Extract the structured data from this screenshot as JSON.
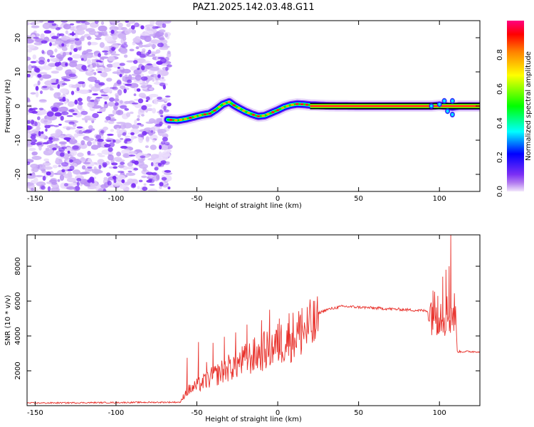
{
  "figure": {
    "title": "PAZ1.2025.142.03.48.G11"
  },
  "chart_data": [
    {
      "type": "heatmap",
      "xlabel": "Height of straight line (km)",
      "ylabel": "Frequency (Hz)",
      "xlim": [
        -155,
        125
      ],
      "ylim": [
        -25,
        25
      ],
      "xticks": [
        -150,
        -100,
        -50,
        0,
        50,
        100
      ],
      "yticks": [
        -20,
        -10,
        0,
        10,
        20
      ],
      "noise_region_x": [
        -155,
        -67
      ],
      "noise_color": "#7b2ff5",
      "signal_ridge": {
        "x": [
          -68,
          -62,
          -57,
          -52,
          -47,
          -42,
          -38,
          -34,
          -30,
          -27,
          -24,
          -20,
          -16,
          -12,
          -8,
          -4,
          0,
          4,
          8,
          12,
          16,
          20,
          30,
          50,
          80,
          95,
          100,
          104,
          108,
          112,
          125
        ],
        "freq": [
          -4,
          -4.2,
          -3.8,
          -3.2,
          -2.6,
          -2.2,
          -1.0,
          0.5,
          1.2,
          0.2,
          -0.6,
          -1.6,
          -2.4,
          -3.0,
          -2.8,
          -2.0,
          -1.2,
          -0.3,
          0.3,
          0.6,
          0.5,
          0.3,
          0.1,
          0,
          0,
          0,
          0.2,
          0,
          -0.3,
          0,
          0
        ]
      },
      "colorbar": {
        "label": "Normalized spectral amplitude",
        "range": [
          0.0,
          1.0
        ],
        "ticks": [
          "0.0",
          "0.2",
          "0.4",
          "0.6",
          "0.8"
        ],
        "colors": [
          "#f2e6fb",
          "#7b2ff5",
          "#0000ff",
          "#00ffff",
          "#00ff00",
          "#ffff00",
          "#ff7f00",
          "#ff0000",
          "#ff0080"
        ]
      }
    },
    {
      "type": "line",
      "xlabel": "Height of straight line (km)",
      "ylabel": "SNR (10 * v/v)",
      "xlim": [
        -155,
        125
      ],
      "ylim": [
        0,
        9800
      ],
      "xticks": [
        -150,
        -100,
        -50,
        0,
        50,
        100
      ],
      "yticks": [
        2000,
        4000,
        6000,
        8000
      ],
      "line_color": "#e8302a",
      "envelope_x": [
        -155,
        -60,
        -57,
        -50,
        -40,
        -30,
        -20,
        -10,
        0,
        10,
        20,
        30,
        40,
        50,
        60,
        70,
        80,
        90,
        95,
        100,
        103,
        106,
        108,
        110,
        111,
        125
      ],
      "envelope_y": [
        150,
        200,
        900,
        1300,
        1900,
        2500,
        3000,
        3500,
        4000,
        4600,
        5100,
        5500,
        5700,
        5650,
        5600,
        5550,
        5500,
        5450,
        5400,
        5300,
        5250,
        5200,
        5300,
        5350,
        3100,
        3100
      ],
      "spikes": [
        {
          "x": -56,
          "y": 2750
        },
        {
          "x": -49,
          "y": 3650
        },
        {
          "x": -44,
          "y": 2500
        },
        {
          "x": -40,
          "y": 3600
        },
        {
          "x": -33,
          "y": 3950
        },
        {
          "x": -26,
          "y": 4200
        },
        {
          "x": -19,
          "y": 4650
        },
        {
          "x": -10,
          "y": 4900
        },
        {
          "x": -5,
          "y": 5500
        },
        {
          "x": 1,
          "y": 5000
        },
        {
          "x": 7,
          "y": 5300
        },
        {
          "x": 15,
          "y": 5600
        },
        {
          "x": 96,
          "y": 6600
        },
        {
          "x": 99,
          "y": 6300
        },
        {
          "x": 102,
          "y": 7400
        },
        {
          "x": 104,
          "y": 7800
        },
        {
          "x": 106,
          "y": 8000
        },
        {
          "x": 107,
          "y": 9800
        }
      ]
    }
  ]
}
